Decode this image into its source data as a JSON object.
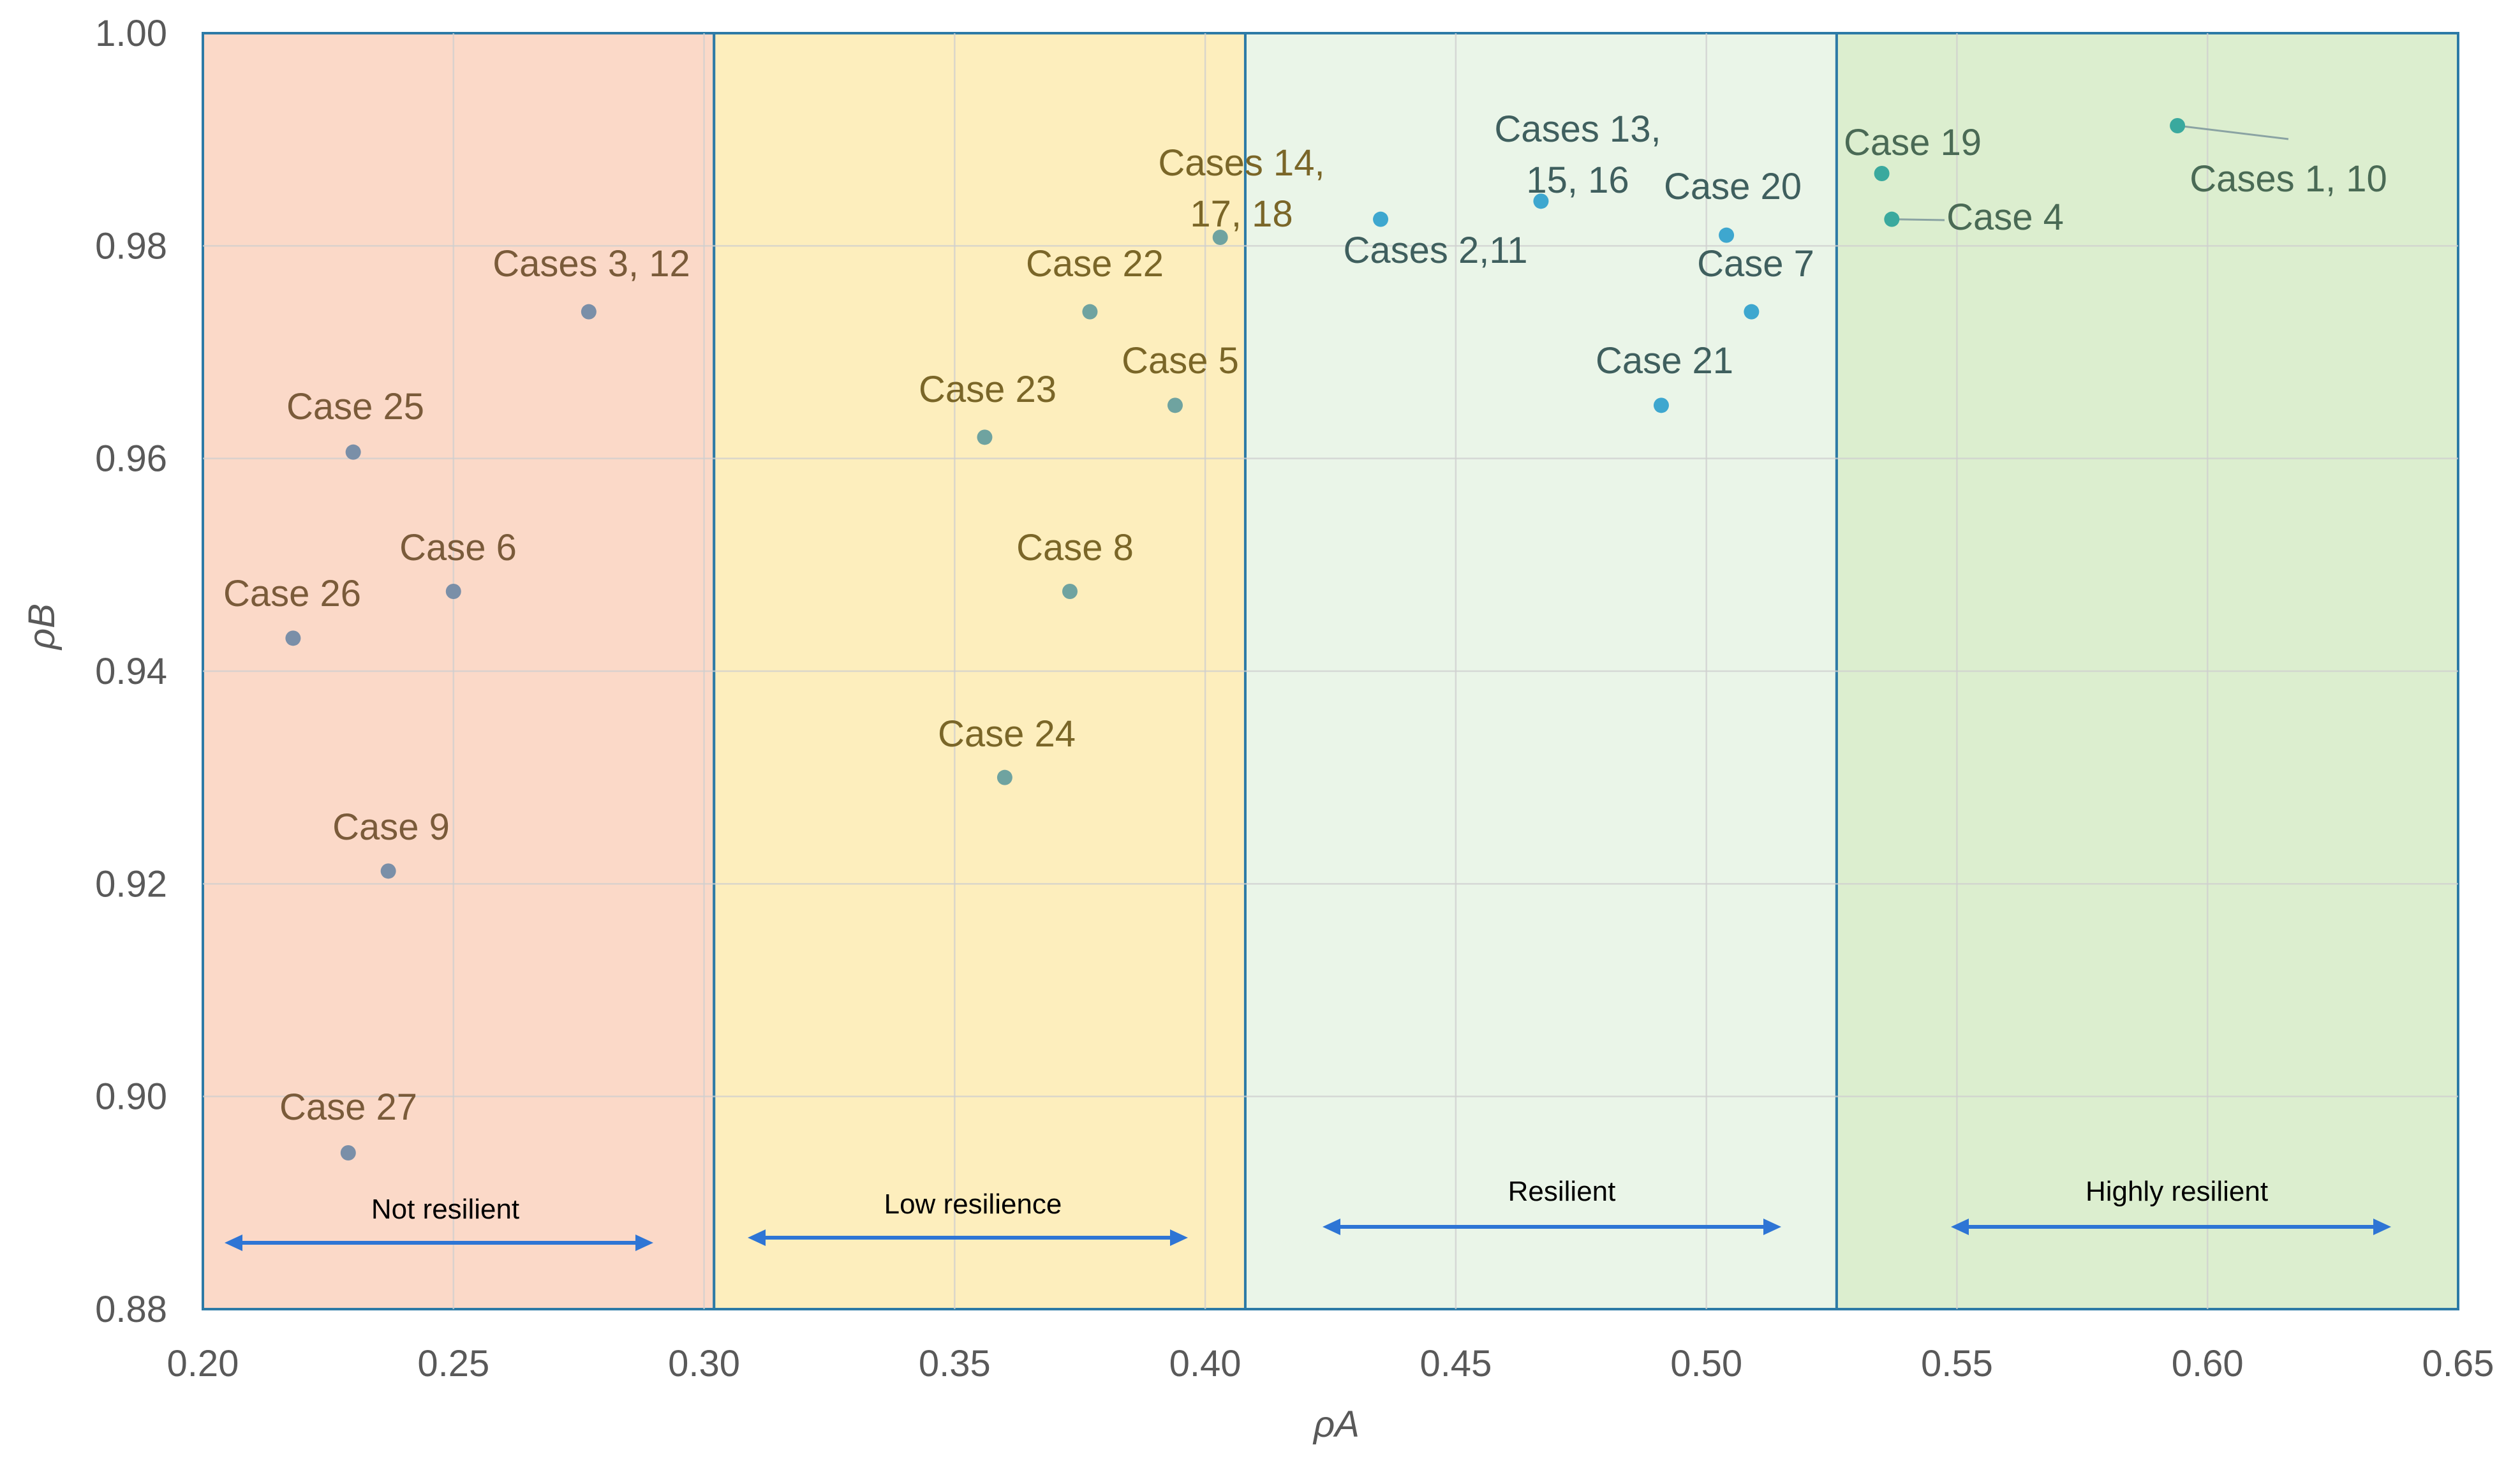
{
  "chart_data": {
    "type": "scatter",
    "title": "",
    "xlabel": "ρA",
    "ylabel": "ρB",
    "xlim": [
      0.2,
      0.65
    ],
    "ylim": [
      0.88,
      1.0
    ],
    "grid": true,
    "x_ticks": [
      "0.20",
      "0.25",
      "0.30",
      "0.35",
      "0.40",
      "0.45",
      "0.50",
      "0.55",
      "0.60",
      "0.65"
    ],
    "y_ticks": [
      "0.88",
      "0.90",
      "0.92",
      "0.94",
      "0.96",
      "0.98",
      "1.00"
    ],
    "zones": [
      {
        "name": "Not resilient",
        "x_from": 0.2,
        "x_to": 0.302,
        "fill": "#fbd9c8"
      },
      {
        "name": "Low resilience",
        "x_from": 0.302,
        "x_to": 0.408,
        "fill": "#fdeebd"
      },
      {
        "name": "Resilient",
        "x_from": 0.408,
        "x_to": 0.526,
        "fill": "#eaf5e8"
      },
      {
        "name": "Highly resilient",
        "x_from": 0.526,
        "x_to": 0.65,
        "fill": "#dceecf"
      }
    ],
    "zone_arrow_color": "#2e75d5",
    "points": [
      {
        "label": "Cases 1, 10",
        "x": 0.594,
        "y": 0.9913
      },
      {
        "label": "Cases 2,11",
        "x": 0.435,
        "y": 0.9825
      },
      {
        "label": "Cases 3, 12",
        "x": 0.277,
        "y": 0.9738
      },
      {
        "label": "Case 4",
        "x": 0.537,
        "y": 0.9825
      },
      {
        "label": "Case 5",
        "x": 0.394,
        "y": 0.965
      },
      {
        "label": "Case 6",
        "x": 0.25,
        "y": 0.9475
      },
      {
        "label": "Case 7",
        "x": 0.509,
        "y": 0.9738
      },
      {
        "label": "Case 8",
        "x": 0.373,
        "y": 0.9475
      },
      {
        "label": "Case 9",
        "x": 0.237,
        "y": 0.9212
      },
      {
        "label": "Cases 13, 15, 16",
        "x": 0.467,
        "y": 0.9842
      },
      {
        "label": "Cases 14, 17, 18",
        "x": 0.403,
        "y": 0.9808
      },
      {
        "label": "Case 19",
        "x": 0.535,
        "y": 0.9868
      },
      {
        "label": "Case 20",
        "x": 0.504,
        "y": 0.981
      },
      {
        "label": "Case 21",
        "x": 0.491,
        "y": 0.965
      },
      {
        "label": "Case 22",
        "x": 0.377,
        "y": 0.9738
      },
      {
        "label": "Case 23",
        "x": 0.356,
        "y": 0.962
      },
      {
        "label": "Case 24",
        "x": 0.36,
        "y": 0.93
      },
      {
        "label": "Case 25",
        "x": 0.23,
        "y": 0.9606
      },
      {
        "label": "Case 26",
        "x": 0.218,
        "y": 0.9431
      },
      {
        "label": "Case 27",
        "x": 0.229,
        "y": 0.8947
      }
    ]
  }
}
